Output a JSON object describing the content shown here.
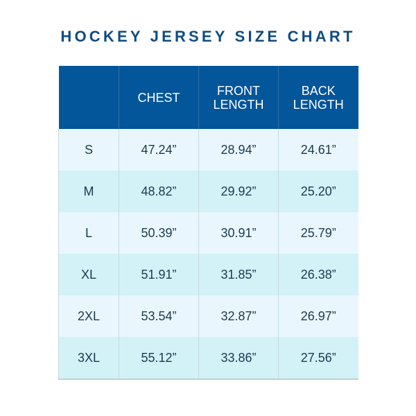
{
  "title": "HOCKEY JERSEY SIZE CHART",
  "colors": {
    "title": "#0f4c81",
    "header_bg": "#03569a",
    "header_text": "#ffffff",
    "row_light": "#eaf6fd",
    "row_dark": "#d2f2f7",
    "cell_text": "#1b3a4f"
  },
  "table": {
    "headers": [
      {
        "line1": "",
        "line2": ""
      },
      {
        "line1": "CHEST",
        "line2": ""
      },
      {
        "line1": "FRONT",
        "line2": "LENGTH"
      },
      {
        "line1": "BACK",
        "line2": "LENGTH"
      }
    ],
    "rows": [
      {
        "size": "S",
        "chest": "47.24”",
        "front_length": "28.94”",
        "back_length": "24.61”"
      },
      {
        "size": "M",
        "chest": "48.82”",
        "front_length": "29.92”",
        "back_length": "25.20”"
      },
      {
        "size": "L",
        "chest": "50.39”",
        "front_length": "30.91”",
        "back_length": "25.79”"
      },
      {
        "size": "XL",
        "chest": "51.91”",
        "front_length": "31.85”",
        "back_length": "26.38”"
      },
      {
        "size": "2XL",
        "chest": "53.54”",
        "front_length": "32.87”",
        "back_length": "26.97”"
      },
      {
        "size": "3XL",
        "chest": "55.12”",
        "front_length": "33.86”",
        "back_length": "27.56”"
      }
    ]
  },
  "chart_data": {
    "type": "table",
    "title": "HOCKEY JERSEY SIZE CHART",
    "columns": [
      "",
      "CHEST",
      "FRONT LENGTH",
      "BACK LENGTH"
    ],
    "categories": [
      "S",
      "M",
      "L",
      "XL",
      "2XL",
      "3XL"
    ],
    "unit": "inches",
    "series": [
      {
        "name": "CHEST",
        "values": [
          47.24,
          48.82,
          50.39,
          51.91,
          53.54,
          55.12
        ]
      },
      {
        "name": "FRONT LENGTH",
        "values": [
          28.94,
          29.92,
          30.91,
          31.85,
          32.87,
          33.86
        ]
      },
      {
        "name": "BACK LENGTH",
        "values": [
          24.61,
          25.2,
          25.79,
          26.38,
          26.97,
          27.56
        ]
      }
    ]
  }
}
